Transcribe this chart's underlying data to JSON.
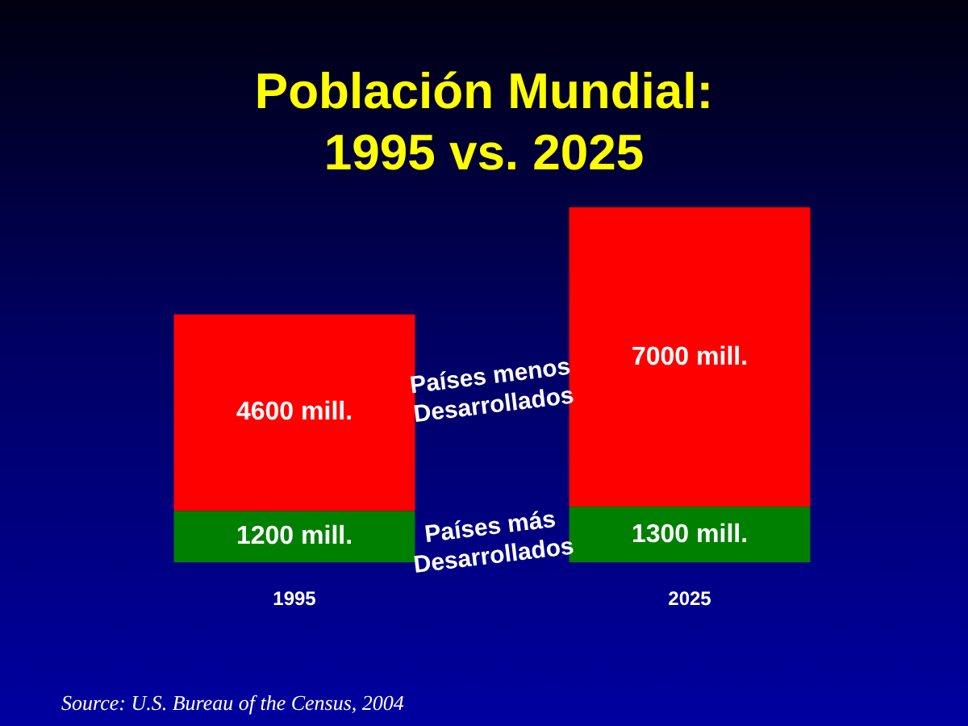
{
  "chart_data": {
    "type": "bar",
    "title": "Población Mundial: 1995 vs. 2025",
    "categories": [
      "1995",
      "2025"
    ],
    "stacked": true,
    "legend": false,
    "grid": false,
    "series": [
      {
        "name": "Países más Desarrollados",
        "color": "#008000",
        "values": [
          1200,
          1300
        ],
        "value_labels": [
          "1200 mill.",
          "1300 mill."
        ]
      },
      {
        "name": "Países menos Desarrollados",
        "color": "#ff0000",
        "values": [
          4600,
          7000
        ],
        "value_labels": [
          "4600 mill.",
          "7000 mill."
        ]
      }
    ],
    "annotations": [
      "Source: U.S. Bureau of the Census, 2004"
    ]
  }
}
